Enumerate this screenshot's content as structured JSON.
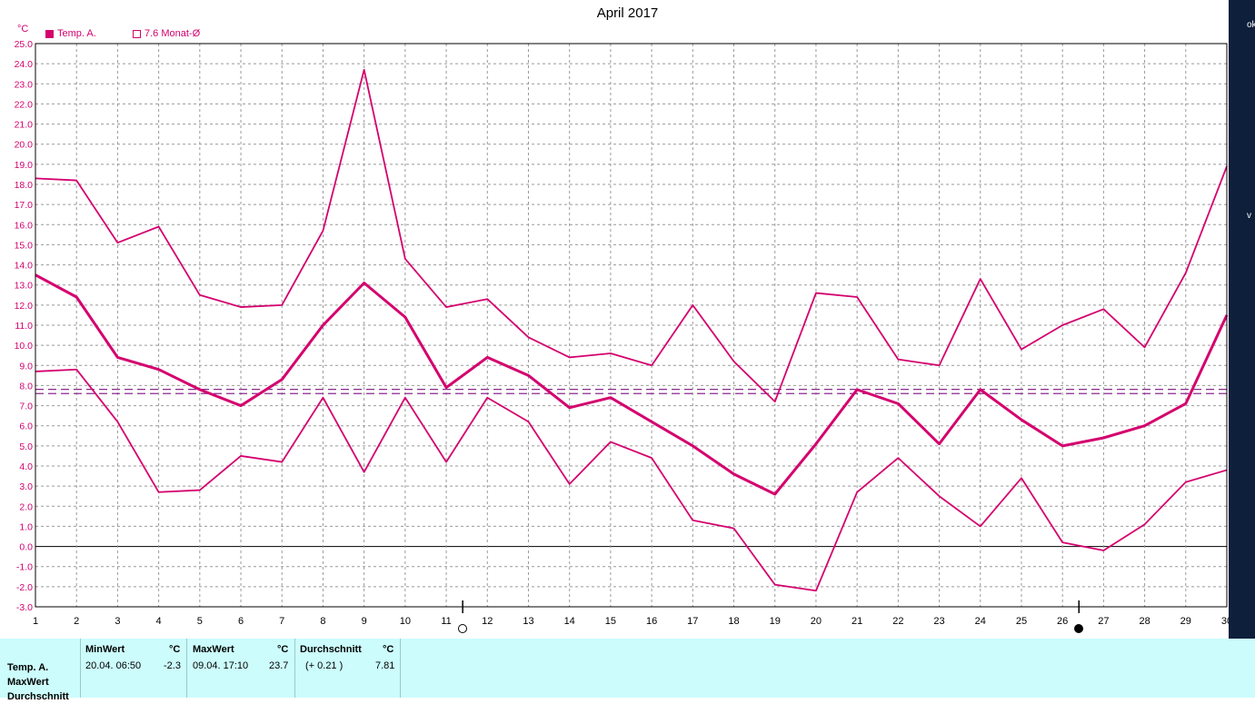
{
  "chart_data": {
    "type": "line",
    "title": "April 2017",
    "ylabel": "°C",
    "ylim": [
      -3.0,
      25.0
    ],
    "xlim": [
      1,
      30
    ],
    "y_ticks": [
      "25.0",
      "24.0",
      "23.0",
      "22.0",
      "21.0",
      "20.0",
      "19.0",
      "18.0",
      "17.0",
      "16.0",
      "15.0",
      "14.0",
      "13.0",
      "12.0",
      "11.0",
      "10.0",
      "9.0",
      "8.0",
      "7.0",
      "6.0",
      "5.0",
      "4.0",
      "3.0",
      "2.0",
      "1.0",
      "0.0",
      "-1.0",
      "-2.0",
      "-3.0"
    ],
    "x": [
      1,
      2,
      3,
      4,
      5,
      6,
      7,
      8,
      9,
      10,
      11,
      12,
      13,
      14,
      15,
      16,
      17,
      18,
      19,
      20,
      21,
      22,
      23,
      24,
      25,
      26,
      27,
      28,
      29,
      30
    ],
    "grid": true,
    "legend": [
      {
        "label": "Temp. A.",
        "swatch": "filled"
      },
      {
        "label": "7.6 Monat-Ø",
        "swatch": "outline"
      }
    ],
    "series": [
      {
        "role": "max",
        "values": [
          18.3,
          18.2,
          15.1,
          15.9,
          12.5,
          11.9,
          12.0,
          15.7,
          23.7,
          14.3,
          11.9,
          12.3,
          10.4,
          9.4,
          9.6,
          9.0,
          12.0,
          9.2,
          7.2,
          12.6,
          12.4,
          9.3,
          9.0,
          13.3,
          9.8,
          11.0,
          11.8,
          9.9,
          13.6,
          18.9
        ]
      },
      {
        "role": "avg",
        "values": [
          13.5,
          12.4,
          9.4,
          8.8,
          7.8,
          7.0,
          8.3,
          11.0,
          13.1,
          11.4,
          7.9,
          9.4,
          8.5,
          6.9,
          7.4,
          6.2,
          5.0,
          3.6,
          2.6,
          5.1,
          7.8,
          7.1,
          5.1,
          7.8,
          6.3,
          5.0,
          5.4,
          6.0,
          7.1,
          11.5
        ]
      },
      {
        "role": "min",
        "values": [
          8.7,
          8.8,
          6.2,
          2.7,
          2.8,
          4.5,
          4.2,
          7.4,
          3.7,
          7.4,
          4.2,
          7.4,
          6.2,
          3.1,
          5.2,
          4.4,
          1.3,
          0.9,
          -1.9,
          -2.2,
          2.7,
          4.4,
          2.5,
          1.0,
          3.4,
          0.2,
          -0.2,
          1.1,
          3.2,
          3.8
        ]
      }
    ],
    "reference_lines": [
      7.81,
      7.6
    ],
    "moon_phases": [
      {
        "day": 11.4,
        "phase": "full"
      },
      {
        "day": 26.4,
        "phase": "new"
      }
    ]
  },
  "colors": {
    "line": "#d4006e",
    "avg_month": "#8a2a8e",
    "table_bg": "#ccfcfc"
  },
  "table": {
    "row_labels": [
      "Temp. A.",
      "MaxWert",
      "Durchschnitt"
    ],
    "min_head": "MinWert",
    "min_unit": "°C",
    "min_date": "20.04.  06:50",
    "min_value": "-2.3",
    "max_head": "MaxWert",
    "max_unit": "°C",
    "max_date": "09.04.  17:10",
    "max_value": "23.7",
    "avg_head": "Durchschnitt",
    "avg_unit": "°C",
    "avg_delta": "(+ 0.21 )",
    "avg_value": "7.81"
  },
  "edge_glyphs": [
    "ok",
    "v"
  ]
}
